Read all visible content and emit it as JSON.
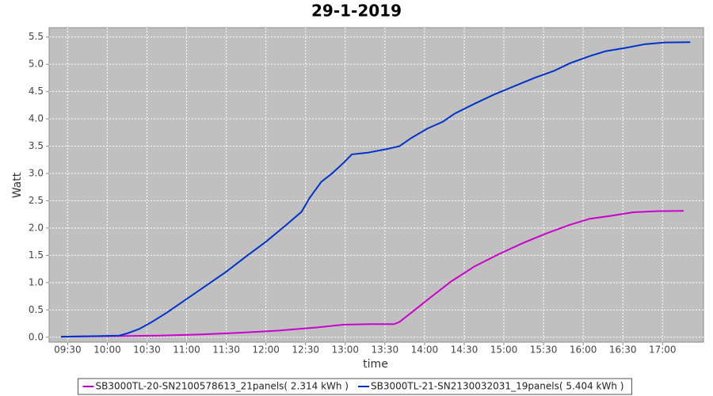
{
  "chart_data": {
    "type": "line",
    "title": "29-1-2019",
    "x_label": "time",
    "y_label": "Watt",
    "xlim": [
      556,
      1051
    ],
    "ylim": [
      -0.09,
      5.67
    ],
    "grid": true,
    "background": "#c0c0c0",
    "legend": "bottom",
    "xticks": [
      {
        "value": 570,
        "label": "09:30"
      },
      {
        "value": 600,
        "label": "10:00"
      },
      {
        "value": 630,
        "label": "10:30"
      },
      {
        "value": 660,
        "label": "11:00"
      },
      {
        "value": 690,
        "label": "11:30"
      },
      {
        "value": 720,
        "label": "12:00"
      },
      {
        "value": 750,
        "label": "12:30"
      },
      {
        "value": 780,
        "label": "13:00"
      },
      {
        "value": 810,
        "label": "13:30"
      },
      {
        "value": 840,
        "label": "14:00"
      },
      {
        "value": 870,
        "label": "14:30"
      },
      {
        "value": 900,
        "label": "15:00"
      },
      {
        "value": 930,
        "label": "15:30"
      },
      {
        "value": 960,
        "label": "16:00"
      },
      {
        "value": 990,
        "label": "16:30"
      },
      {
        "value": 1020,
        "label": "17:00"
      }
    ],
    "yticks": [
      {
        "value": 0,
        "label": "0.0"
      },
      0.5,
      {
        "value": 1,
        "label": "1.0"
      },
      1.5,
      {
        "value": 2,
        "label": "2.0"
      },
      2.5,
      {
        "value": 3,
        "label": "3.0"
      },
      3.5,
      {
        "value": 4,
        "label": "4.0"
      },
      4.5,
      {
        "value": 5,
        "label": "5.0"
      },
      5.5
    ],
    "series": [
      {
        "name": "SB3000TL-20-SN2100578613_21panels( 2.314 kWh )",
        "color": "#cc00cc",
        "x": [
          565,
          609,
          639,
          669,
          699,
          729,
          759,
          779,
          800,
          817,
          821,
          830,
          842,
          860,
          878,
          896,
          914,
          932,
          950,
          965,
          980,
          998,
          1016,
          1036
        ],
        "values": [
          0.01,
          0.02,
          0.03,
          0.05,
          0.08,
          0.12,
          0.18,
          0.23,
          0.24,
          0.24,
          0.28,
          0.45,
          0.68,
          1.02,
          1.3,
          1.52,
          1.72,
          1.9,
          2.06,
          2.17,
          2.22,
          2.29,
          2.31,
          2.314
        ]
      },
      {
        "name": "SB3000TL-21-SN2130032031_19panels( 5.404 kWh )",
        "color": "#0033cc",
        "x": [
          565,
          591,
          609,
          615,
          624,
          633,
          645,
          660,
          675,
          690,
          705,
          720,
          735,
          747,
          753,
          762,
          770,
          779,
          785,
          797,
          812,
          821,
          830,
          842,
          854,
          863,
          878,
          893,
          908,
          923,
          938,
          950,
          965,
          977,
          992,
          1007,
          1022,
          1041
        ],
        "values": [
          0.01,
          0.02,
          0.03,
          0.07,
          0.15,
          0.27,
          0.45,
          0.7,
          0.95,
          1.2,
          1.48,
          1.75,
          2.05,
          2.3,
          2.55,
          2.85,
          3.0,
          3.2,
          3.35,
          3.38,
          3.45,
          3.5,
          3.65,
          3.82,
          3.95,
          4.1,
          4.28,
          4.45,
          4.6,
          4.75,
          4.88,
          5.02,
          5.15,
          5.24,
          5.3,
          5.37,
          5.4,
          5.404
        ]
      }
    ]
  }
}
